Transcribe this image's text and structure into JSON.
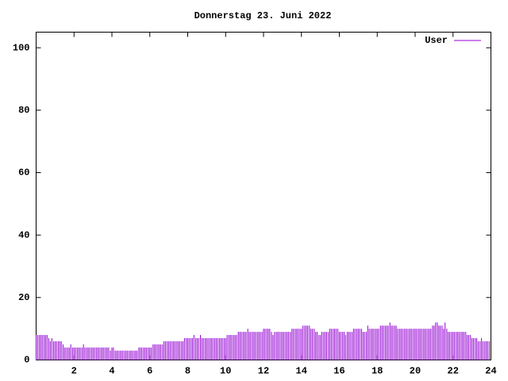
{
  "chart_data": {
    "type": "impulse",
    "title": "Donnerstag 23. Juni 2022",
    "xlim": [
      0,
      24
    ],
    "xticks": [
      2,
      4,
      6,
      8,
      10,
      12,
      14,
      16,
      18,
      20,
      22,
      24
    ],
    "ylim": [
      0,
      105
    ],
    "yticks": [
      0,
      20,
      40,
      60,
      80,
      100
    ],
    "legend": "top-right",
    "x": [
      0,
      0.08,
      0.17,
      0.25,
      0.33,
      0.42,
      0.5,
      0.58,
      0.67,
      0.75,
      0.83,
      0.92,
      1,
      1.08,
      1.17,
      1.25,
      1.33,
      1.42,
      1.5,
      1.58,
      1.67,
      1.75,
      1.83,
      1.92,
      2,
      2.08,
      2.17,
      2.25,
      2.33,
      2.42,
      2.5,
      2.58,
      2.67,
      2.75,
      2.83,
      2.92,
      3,
      3.08,
      3.17,
      3.25,
      3.33,
      3.42,
      3.5,
      3.58,
      3.67,
      3.75,
      3.83,
      3.92,
      4,
      4.08,
      4.17,
      4.25,
      4.33,
      4.42,
      4.5,
      4.58,
      4.67,
      4.75,
      4.83,
      4.92,
      5,
      5.08,
      5.17,
      5.25,
      5.33,
      5.42,
      5.5,
      5.58,
      5.67,
      5.75,
      5.83,
      5.92,
      6,
      6.08,
      6.17,
      6.25,
      6.33,
      6.42,
      6.5,
      6.58,
      6.67,
      6.75,
      6.83,
      6.92,
      7,
      7.08,
      7.17,
      7.25,
      7.33,
      7.42,
      7.5,
      7.58,
      7.67,
      7.75,
      7.83,
      7.92,
      8,
      8.08,
      8.17,
      8.25,
      8.33,
      8.42,
      8.5,
      8.58,
      8.67,
      8.75,
      8.83,
      8.92,
      9,
      9.08,
      9.17,
      9.25,
      9.33,
      9.42,
      9.5,
      9.58,
      9.67,
      9.75,
      9.83,
      9.92,
      10,
      10.08,
      10.17,
      10.25,
      10.33,
      10.42,
      10.5,
      10.58,
      10.67,
      10.75,
      10.83,
      10.92,
      11,
      11.08,
      11.17,
      11.25,
      11.33,
      11.42,
      11.5,
      11.58,
      11.67,
      11.75,
      11.83,
      11.92,
      12,
      12.08,
      12.17,
      12.25,
      12.33,
      12.42,
      12.5,
      12.58,
      12.67,
      12.75,
      12.83,
      12.92,
      13,
      13.08,
      13.17,
      13.25,
      13.33,
      13.42,
      13.5,
      13.58,
      13.67,
      13.75,
      13.83,
      13.92,
      14,
      14.08,
      14.17,
      14.25,
      14.33,
      14.42,
      14.5,
      14.58,
      14.67,
      14.75,
      14.83,
      14.92,
      15,
      15.08,
      15.17,
      15.25,
      15.33,
      15.42,
      15.5,
      15.58,
      15.67,
      15.75,
      15.83,
      15.92,
      16,
      16.08,
      16.17,
      16.25,
      16.33,
      16.42,
      16.5,
      16.58,
      16.67,
      16.75,
      16.83,
      16.92,
      17,
      17.08,
      17.17,
      17.25,
      17.33,
      17.42,
      17.5,
      17.58,
      17.67,
      17.75,
      17.83,
      17.92,
      18,
      18.08,
      18.17,
      18.25,
      18.33,
      18.42,
      18.5,
      18.58,
      18.67,
      18.75,
      18.83,
      18.92,
      19,
      19.08,
      19.17,
      19.25,
      19.33,
      19.42,
      19.5,
      19.58,
      19.67,
      19.75,
      19.83,
      19.92,
      20,
      20.08,
      20.17,
      20.25,
      20.33,
      20.42,
      20.5,
      20.58,
      20.67,
      20.75,
      20.83,
      20.92,
      21,
      21.08,
      21.17,
      21.25,
      21.33,
      21.42,
      21.5,
      21.58,
      21.67,
      21.75,
      21.83,
      21.92,
      22,
      22.08,
      22.17,
      22.25,
      22.33,
      22.42,
      22.5,
      22.58,
      22.67,
      22.75,
      22.83,
      22.92,
      23,
      23.08,
      23.17,
      23.25,
      23.33,
      23.42,
      23.5,
      23.58,
      23.67,
      23.75,
      23.83,
      23.92
    ],
    "series": [
      {
        "name": "User",
        "color": "#9400d3",
        "values": [
          8,
          8,
          8,
          8,
          8,
          8,
          8,
          8,
          7,
          6,
          7,
          6,
          6,
          6,
          6,
          6,
          6,
          5,
          4,
          4,
          4,
          4,
          5,
          4,
          4,
          4,
          4,
          4,
          4,
          4,
          5,
          4,
          4,
          4,
          4,
          4,
          4,
          4,
          4,
          4,
          4,
          4,
          4,
          4,
          4,
          4,
          4,
          3,
          4,
          4,
          3,
          3,
          3,
          3,
          3,
          3,
          3,
          3,
          3,
          3,
          3,
          3,
          3,
          3,
          3,
          4,
          4,
          4,
          4,
          4,
          4,
          4,
          4,
          4,
          5,
          5,
          5,
          5,
          5,
          5,
          5,
          6,
          6,
          6,
          6,
          6,
          6,
          6,
          6,
          6,
          6,
          6,
          6,
          6,
          7,
          7,
          7,
          7,
          7,
          7,
          8,
          7,
          7,
          7,
          8,
          7,
          7,
          7,
          7,
          7,
          7,
          7,
          7,
          7,
          7,
          7,
          7,
          7,
          7,
          7,
          7,
          8,
          8,
          8,
          8,
          8,
          8,
          8,
          9,
          9,
          9,
          9,
          9,
          9,
          10,
          9,
          9,
          9,
          9,
          9,
          9,
          9,
          9,
          9,
          10,
          10,
          10,
          10,
          10,
          9,
          8,
          9,
          9,
          9,
          9,
          9,
          9,
          9,
          9,
          9,
          9,
          9,
          10,
          10,
          10,
          10,
          10,
          10,
          10,
          11,
          11,
          11,
          11,
          11,
          10,
          10,
          10,
          9,
          9,
          8,
          8,
          9,
          9,
          9,
          9,
          9,
          10,
          10,
          10,
          10,
          10,
          10,
          9,
          9,
          9,
          9,
          8,
          9,
          9,
          9,
          9,
          10,
          10,
          10,
          10,
          10,
          10,
          9,
          9,
          9,
          11,
          10,
          10,
          10,
          10,
          10,
          10,
          10,
          11,
          11,
          11,
          11,
          11,
          11,
          12,
          11,
          11,
          11,
          11,
          10,
          10,
          10,
          10,
          10,
          10,
          10,
          10,
          10,
          10,
          10,
          10,
          10,
          10,
          10,
          10,
          10,
          10,
          10,
          10,
          10,
          10,
          11,
          11,
          12,
          12,
          11,
          11,
          11,
          10,
          12,
          10,
          9,
          9,
          9,
          9,
          9,
          9,
          9,
          9,
          9,
          9,
          9,
          9,
          8,
          8,
          8,
          7,
          7,
          7,
          7,
          6,
          6,
          7,
          6,
          6,
          6,
          6,
          6
        ]
      }
    ]
  }
}
